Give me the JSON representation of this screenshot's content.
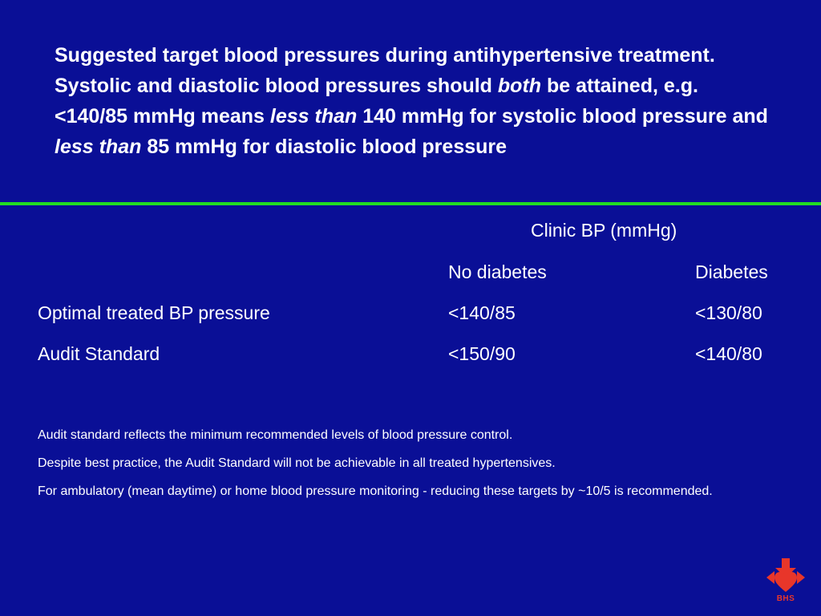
{
  "title": {
    "part1": "Suggested target blood pressures during antihypertensive treatment. Systolic and diastolic blood pressures should ",
    "em1": "both",
    "part2": " be attained, e.g. <140/85 mmHg means ",
    "em2": "less than",
    "part3": " 140 mmHg for systolic blood pressure and ",
    "em3": "less than",
    "part4": " 85 mmHg for diastolic blood pressure"
  },
  "table": {
    "group_header": "Clinic BP (mmHg)",
    "columns": [
      "No diabetes",
      "Diabetes"
    ],
    "rows": [
      {
        "label": "Optimal treated BP pressure",
        "values": [
          "<140/85",
          "<130/80"
        ]
      },
      {
        "label": "Audit Standard",
        "values": [
          "<150/90",
          "<140/80"
        ]
      }
    ]
  },
  "notes": [
    "Audit standard reflects the minimum recommended levels of blood pressure control.",
    "Despite best practice, the Audit Standard will not be achievable in all treated hypertensives.",
    "For ambulatory (mean daytime) or home blood pressure monitoring - reducing these targets by ~10/5 is recommended."
  ],
  "logo": {
    "text": "BHS",
    "color": "#e8362a",
    "icon": "bhs-heart-arrow-icon"
  },
  "colors": {
    "background": "#0a0f96",
    "divider": "#22dd22",
    "text": "#ffffff"
  }
}
